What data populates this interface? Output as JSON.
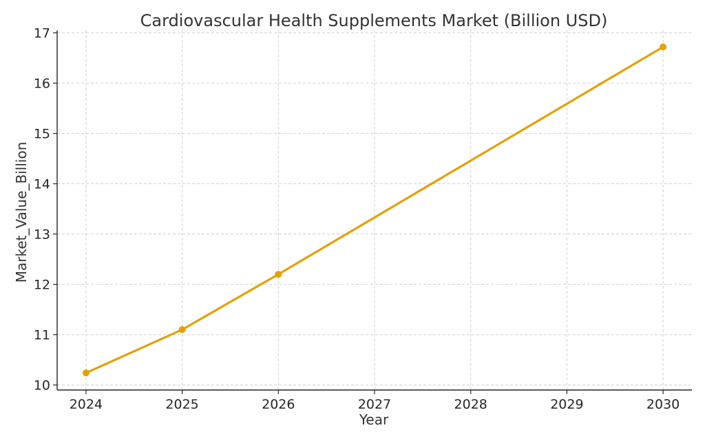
{
  "chart_data": {
    "type": "line",
    "title": "Cardiovascular Health Supplements Market (Billion USD)",
    "xlabel": "Year",
    "ylabel": "Market_Value_Billion",
    "x": [
      2024,
      2025,
      2026,
      2027,
      2028,
      2029,
      2030
    ],
    "x_ticks": [
      "2024",
      "2025",
      "2026",
      "2027",
      "2028",
      "2029",
      "2030"
    ],
    "y_ticks": [
      "10",
      "11",
      "12",
      "13",
      "14",
      "15",
      "16",
      "17"
    ],
    "xlim": [
      2023.7,
      2030.3
    ],
    "ylim": [
      9.9,
      17.05
    ],
    "grid": true,
    "series": [
      {
        "values": [
          10.24,
          11.1,
          12.2,
          13.33,
          14.46,
          15.59,
          16.72
        ],
        "markers_at": [
          2024,
          2025,
          2026,
          2030
        ],
        "color": "#E3A008"
      }
    ]
  }
}
